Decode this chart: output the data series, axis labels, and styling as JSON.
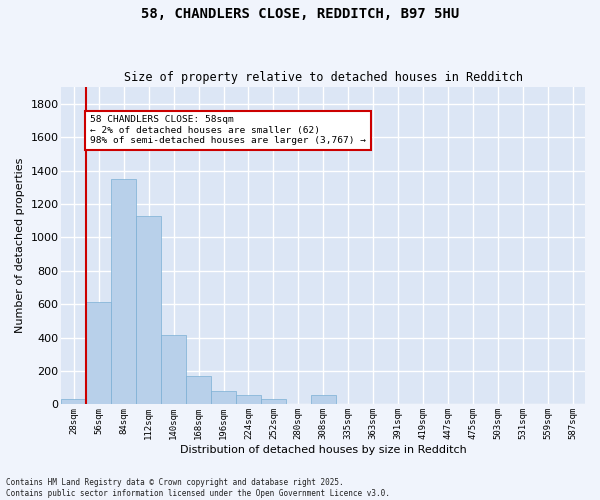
{
  "title": "58, CHANDLERS CLOSE, REDDITCH, B97 5HU",
  "subtitle": "Size of property relative to detached houses in Redditch",
  "xlabel": "Distribution of detached houses by size in Redditch",
  "ylabel": "Number of detached properties",
  "bar_color": "#b8d0ea",
  "bar_edge_color": "#7aafd4",
  "background_color": "#dce6f5",
  "grid_color": "#ffffff",
  "categories": [
    "28sqm",
    "56sqm",
    "84sqm",
    "112sqm",
    "140sqm",
    "168sqm",
    "196sqm",
    "224sqm",
    "252sqm",
    "280sqm",
    "308sqm",
    "335sqm",
    "363sqm",
    "391sqm",
    "419sqm",
    "447sqm",
    "475sqm",
    "503sqm",
    "531sqm",
    "559sqm",
    "587sqm"
  ],
  "values": [
    30,
    615,
    1350,
    1130,
    415,
    170,
    80,
    55,
    30,
    0,
    55,
    0,
    0,
    0,
    0,
    0,
    0,
    0,
    0,
    0,
    0
  ],
  "ylim": [
    0,
    1900
  ],
  "yticks": [
    0,
    200,
    400,
    600,
    800,
    1000,
    1200,
    1400,
    1600,
    1800
  ],
  "annotation_text": "58 CHANDLERS CLOSE: 58sqm\n← 2% of detached houses are smaller (62)\n98% of semi-detached houses are larger (3,767) →",
  "annotation_box_color": "#ffffff",
  "annotation_box_edge_color": "#cc0000",
  "red_line_color": "#cc0000",
  "red_line_x": 0.5,
  "footer_line1": "Contains HM Land Registry data © Crown copyright and database right 2025.",
  "footer_line2": "Contains public sector information licensed under the Open Government Licence v3.0.",
  "fig_facecolor": "#f0f4fc"
}
